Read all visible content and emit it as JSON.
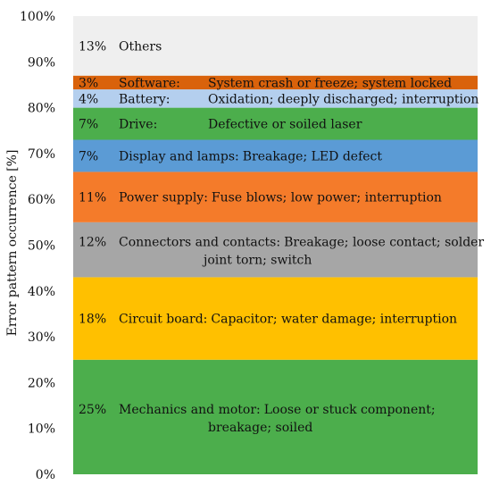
{
  "chart_data": {
    "type": "bar",
    "stacked": true,
    "title": "",
    "xlabel": "",
    "ylabel": "Error pattern occurrence [%]",
    "ylim": [
      0,
      100
    ],
    "yticks": [
      0,
      10,
      20,
      30,
      40,
      50,
      60,
      70,
      80,
      90,
      100
    ],
    "ytick_labels": [
      "0%",
      "10%",
      "20%",
      "30%",
      "40%",
      "50%",
      "60%",
      "70%",
      "80%",
      "90%",
      "100%"
    ],
    "grid": false,
    "series": [
      {
        "pct_label": "25%",
        "value": 25,
        "category": "Mechanics and motor:",
        "description": "Loose or stuck component; breakage; soiled",
        "color": "#4cae4c"
      },
      {
        "pct_label": "18%",
        "value": 18,
        "category": "Circuit board:",
        "description": "Capacitor; water damage; interruption",
        "color": "#ffc000"
      },
      {
        "pct_label": "12%",
        "value": 12,
        "category": "Connectors and contacts:",
        "description": "Breakage; loose contact; solder joint torn; switch",
        "color": "#a6a6a6"
      },
      {
        "pct_label": "11%",
        "value": 11,
        "category": "Power supply:",
        "description": "Fuse blows; low power; interruption",
        "color": "#f47b2a"
      },
      {
        "pct_label": "7%",
        "value": 7,
        "category": "Display and lamps:",
        "description": "Breakage; LED defect",
        "color": "#5b9bd5"
      },
      {
        "pct_label": "7%",
        "value": 7,
        "category": "Drive:",
        "description": "Defective or soiled laser",
        "color": "#4cae4c"
      },
      {
        "pct_label": "4%",
        "value": 4,
        "category": "Battery:",
        "description": "Oxidation; deeply discharged; interruption",
        "color": "#b4cfee"
      },
      {
        "pct_label": "3%",
        "value": 3,
        "category": "Software:",
        "description": "System crash or freeze; system locked",
        "color": "#d9620b"
      },
      {
        "pct_label": "13%",
        "value": 13,
        "category": "Others",
        "description": "",
        "color": "#efefef"
      }
    ]
  }
}
